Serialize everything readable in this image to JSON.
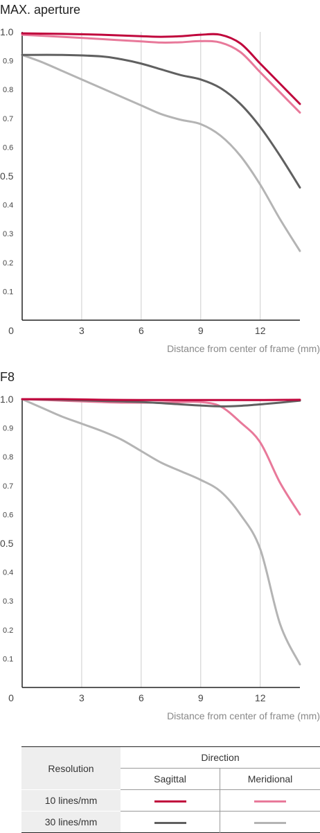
{
  "panels": [
    {
      "title": "MAX. aperture",
      "xlabel": "Distance from center of frame (mm)",
      "x_ticks": [
        "0",
        "3",
        "6",
        "9",
        "12"
      ],
      "y_ticks_major": [
        "1.0",
        "0.5"
      ],
      "y_ticks_minor": [
        "0.9",
        "0.8",
        "0.7",
        "0.6",
        "0.4",
        "0.3",
        "0.2",
        "0.1"
      ]
    },
    {
      "title": "F8",
      "xlabel": "Distance from center of frame (mm)",
      "x_ticks": [
        "0",
        "3",
        "6",
        "9",
        "12"
      ],
      "y_ticks_major": [
        "1.0",
        "0.5"
      ],
      "y_ticks_minor": [
        "0.9",
        "0.8",
        "0.7",
        "0.6",
        "0.4",
        "0.3",
        "0.2",
        "0.1"
      ]
    }
  ],
  "legend": {
    "resolution_header": "Resolution",
    "direction_header": "Direction",
    "sagittal": "Sagittal",
    "meridional": "Meridional",
    "rows": [
      {
        "label": "10 lines/mm",
        "sagittal_color": "#c0063c",
        "meridional_color": "#e8799a"
      },
      {
        "label": "30 lines/mm",
        "sagittal_color": "#606060",
        "meridional_color": "#b4b4b4"
      }
    ]
  },
  "colors": {
    "sagittal_10": "#c0063c",
    "meridional_10": "#e8799a",
    "sagittal_30": "#606060",
    "meridional_30": "#b4b4b4",
    "grid": "#cccccc",
    "axis": "#222222"
  },
  "chart_data": [
    {
      "type": "line",
      "title": "MAX. aperture",
      "xlabel": "Distance from center of frame (mm)",
      "ylabel": "",
      "xlim": [
        0,
        14
      ],
      "ylim": [
        0,
        1.0
      ],
      "grid": true,
      "series": [
        {
          "name": "10 lines/mm Sagittal",
          "color": "#c0063c",
          "x": [
            0,
            2,
            4,
            6,
            7,
            8,
            9,
            10,
            11,
            12,
            13,
            14
          ],
          "y": [
            0.995,
            0.993,
            0.99,
            0.985,
            0.983,
            0.985,
            0.99,
            0.99,
            0.96,
            0.89,
            0.82,
            0.75
          ]
        },
        {
          "name": "10 lines/mm Meridional",
          "color": "#e8799a",
          "x": [
            0,
            2,
            4,
            6,
            7,
            8,
            9,
            10,
            11,
            12,
            13,
            14
          ],
          "y": [
            0.99,
            0.983,
            0.975,
            0.967,
            0.963,
            0.964,
            0.968,
            0.963,
            0.93,
            0.86,
            0.79,
            0.72
          ]
        },
        {
          "name": "30 lines/mm Sagittal",
          "color": "#606060",
          "x": [
            0,
            2,
            4,
            5,
            6,
            7,
            8,
            9,
            10,
            11,
            12,
            13,
            14
          ],
          "y": [
            0.92,
            0.92,
            0.915,
            0.905,
            0.89,
            0.87,
            0.85,
            0.835,
            0.805,
            0.75,
            0.67,
            0.57,
            0.46
          ]
        },
        {
          "name": "30 lines/mm Meridional",
          "color": "#b4b4b4",
          "x": [
            0,
            1,
            2,
            3,
            4,
            5,
            6,
            7,
            8,
            9,
            10,
            11,
            12,
            13,
            14
          ],
          "y": [
            0.92,
            0.895,
            0.865,
            0.835,
            0.805,
            0.775,
            0.745,
            0.715,
            0.695,
            0.68,
            0.64,
            0.57,
            0.47,
            0.35,
            0.24
          ]
        }
      ]
    },
    {
      "type": "line",
      "title": "F8",
      "xlabel": "Distance from center of frame (mm)",
      "ylabel": "",
      "xlim": [
        0,
        14
      ],
      "ylim": [
        0,
        1.0
      ],
      "grid": true,
      "series": [
        {
          "name": "10 lines/mm Sagittal",
          "color": "#c0063c",
          "x": [
            0,
            2,
            4,
            6,
            8,
            10,
            12,
            14
          ],
          "y": [
            1.0,
            1.0,
            0.998,
            0.997,
            0.997,
            0.997,
            0.997,
            0.998
          ]
        },
        {
          "name": "10 lines/mm Meridional",
          "color": "#e8799a",
          "x": [
            0,
            2,
            4,
            5,
            6,
            7,
            8,
            9,
            10,
            11,
            12,
            13,
            14
          ],
          "y": [
            1.0,
            0.995,
            0.99,
            0.988,
            0.988,
            0.988,
            0.99,
            0.99,
            0.975,
            0.92,
            0.85,
            0.71,
            0.6
          ]
        },
        {
          "name": "30 lines/mm Sagittal",
          "color": "#606060",
          "x": [
            0,
            2,
            4,
            6,
            8,
            9,
            10,
            11,
            12,
            13,
            14
          ],
          "y": [
            1.0,
            0.998,
            0.994,
            0.99,
            0.982,
            0.978,
            0.975,
            0.977,
            0.982,
            0.988,
            0.995
          ]
        },
        {
          "name": "30 lines/mm Meridional",
          "color": "#b4b4b4",
          "x": [
            0,
            1,
            2,
            3,
            4,
            5,
            6,
            7,
            8,
            9,
            10,
            11,
            12,
            13,
            14
          ],
          "y": [
            1.0,
            0.97,
            0.94,
            0.915,
            0.89,
            0.86,
            0.82,
            0.78,
            0.75,
            0.72,
            0.68,
            0.6,
            0.48,
            0.22,
            0.08
          ]
        }
      ]
    }
  ]
}
